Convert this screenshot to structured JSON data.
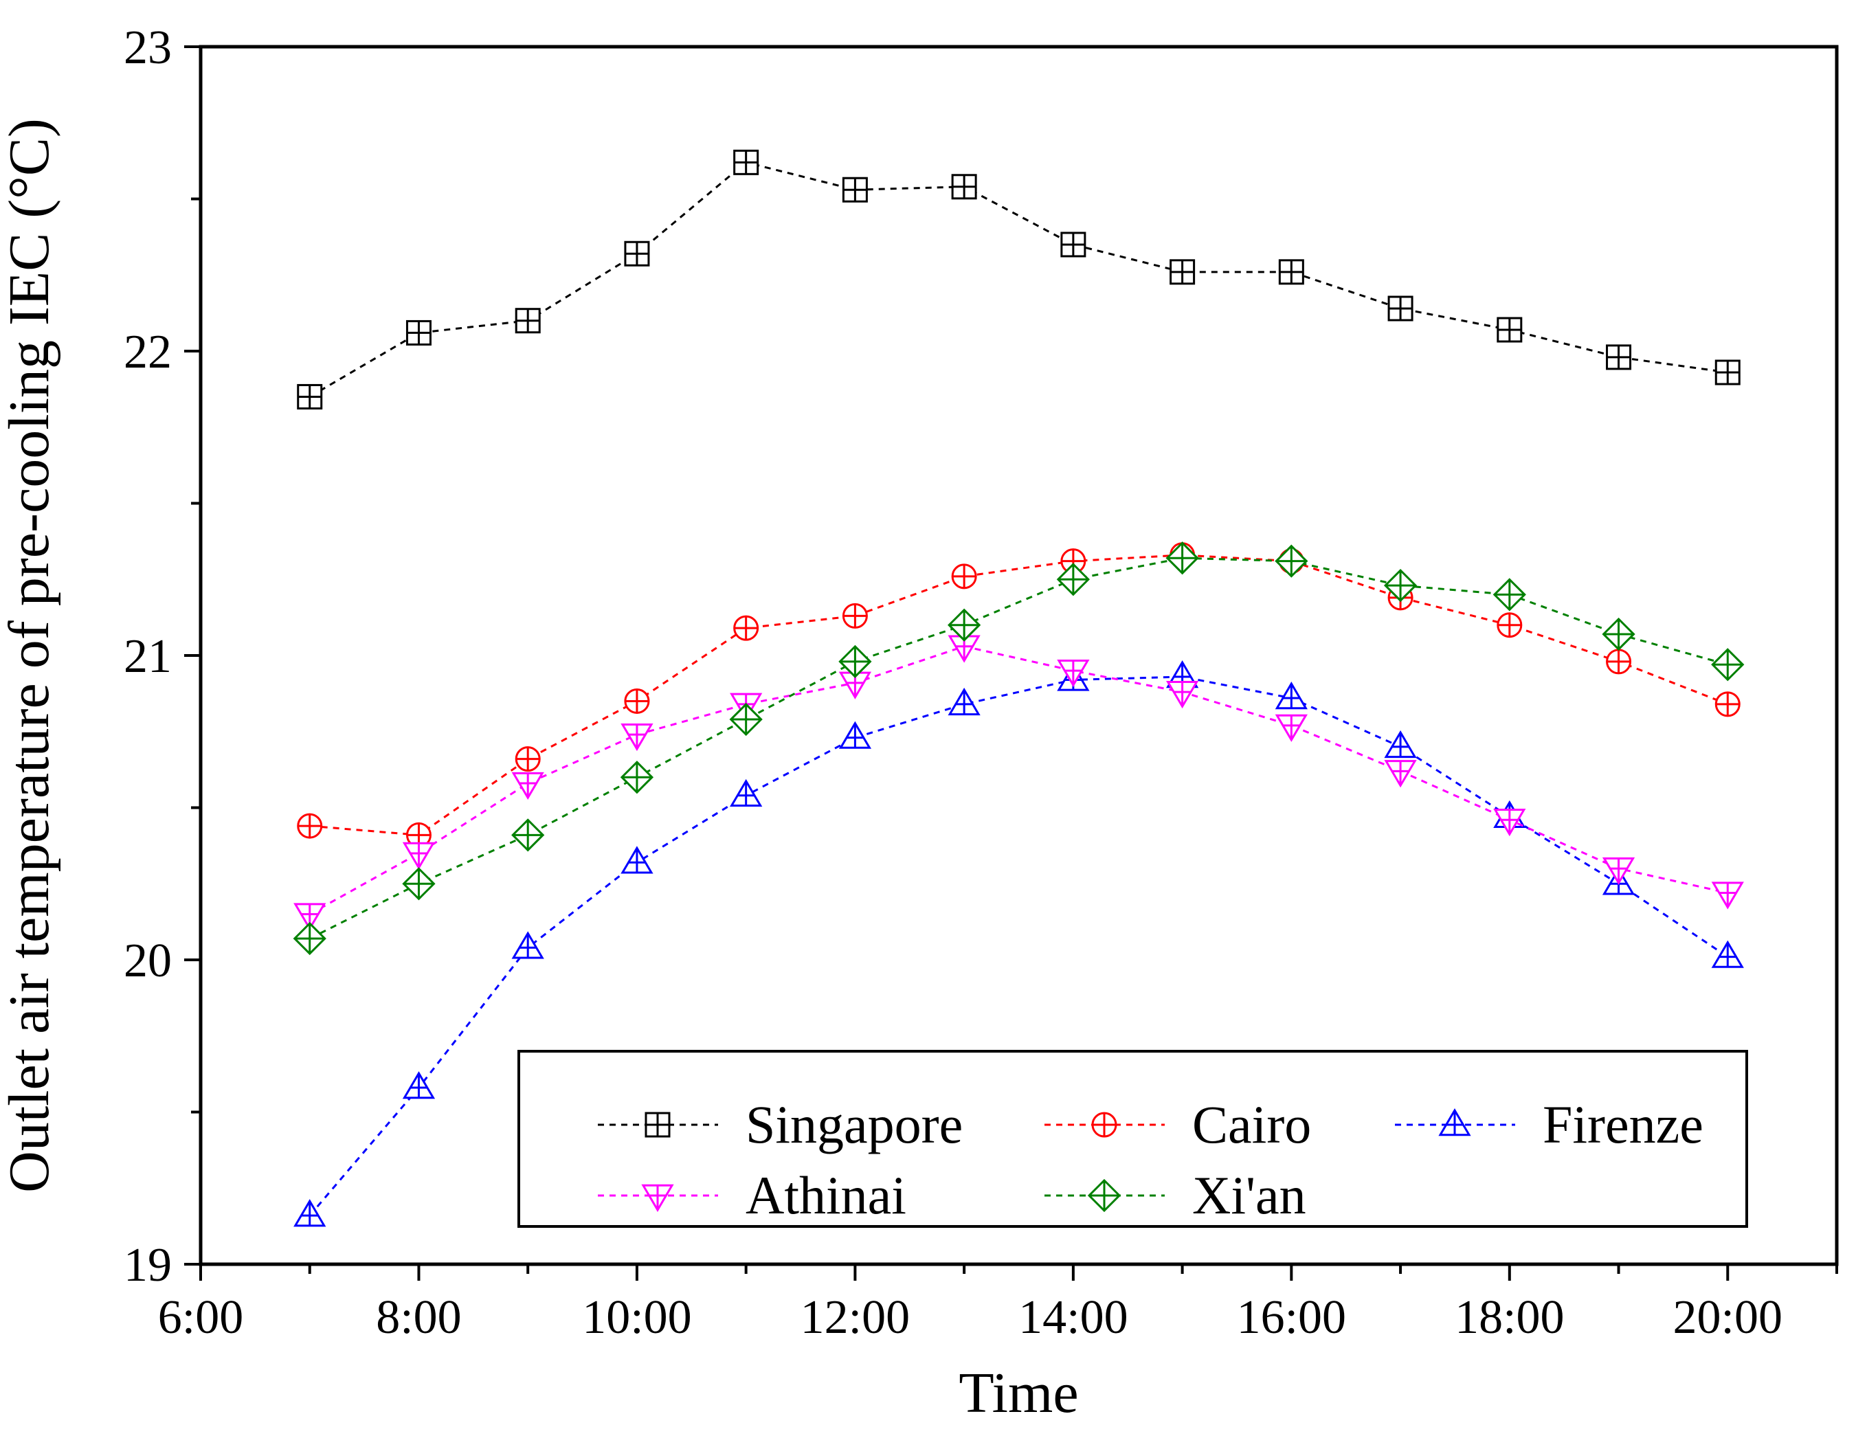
{
  "chart_data": {
    "type": "line",
    "title": "",
    "xlabel": "Time",
    "ylabel": "Outlet air temperature of pre-cooling IEC (°C)",
    "xlim": [
      6,
      21
    ],
    "ylim": [
      19,
      23
    ],
    "x_ticks": [
      {
        "value": 6,
        "label": "6:00"
      },
      {
        "value": 8,
        "label": "8:00"
      },
      {
        "value": 10,
        "label": "10:00"
      },
      {
        "value": 12,
        "label": "12:00"
      },
      {
        "value": 14,
        "label": "14:00"
      },
      {
        "value": 16,
        "label": "16:00"
      },
      {
        "value": 18,
        "label": "18:00"
      },
      {
        "value": 20,
        "label": "20:00"
      }
    ],
    "y_ticks": [
      {
        "value": 19,
        "label": "19"
      },
      {
        "value": 20,
        "label": "20"
      },
      {
        "value": 21,
        "label": "21"
      },
      {
        "value": 22,
        "label": "22"
      },
      {
        "value": 23,
        "label": "23"
      }
    ],
    "x": [
      7,
      8,
      9,
      10,
      11,
      12,
      13,
      14,
      15,
      16,
      17,
      18,
      19,
      20
    ],
    "series": [
      {
        "name": "Singapore",
        "color": "#000000",
        "marker": "square-plus",
        "values": [
          21.85,
          22.06,
          22.1,
          22.32,
          22.62,
          22.53,
          22.54,
          22.35,
          22.26,
          22.26,
          22.14,
          22.07,
          21.98,
          21.93
        ]
      },
      {
        "name": "Cairo",
        "color": "#ff0000",
        "marker": "circle-plus",
        "values": [
          20.44,
          20.41,
          20.66,
          20.85,
          21.09,
          21.13,
          21.26,
          21.31,
          21.33,
          21.31,
          21.19,
          21.1,
          20.98,
          20.84
        ]
      },
      {
        "name": "Firenze",
        "color": "#0000ff",
        "marker": "triangle-up-plus",
        "values": [
          19.16,
          19.58,
          20.04,
          20.32,
          20.54,
          20.73,
          20.84,
          20.92,
          20.93,
          20.86,
          20.7,
          20.47,
          20.25,
          20.01
        ]
      },
      {
        "name": "Athinai",
        "color": "#ff00ff",
        "marker": "triangle-down-plus",
        "values": [
          20.15,
          20.35,
          20.58,
          20.74,
          20.84,
          20.91,
          21.03,
          20.95,
          20.88,
          20.77,
          20.62,
          20.46,
          20.3,
          20.22
        ]
      },
      {
        "name": "Xi'an",
        "color": "#008000",
        "marker": "diamond-plus",
        "values": [
          20.07,
          20.25,
          20.41,
          20.6,
          20.79,
          20.98,
          21.1,
          21.25,
          21.32,
          21.31,
          21.23,
          21.2,
          21.07,
          20.97
        ]
      }
    ],
    "legend": {
      "position": "bottom-right",
      "columns": 3
    },
    "grid": false
  }
}
